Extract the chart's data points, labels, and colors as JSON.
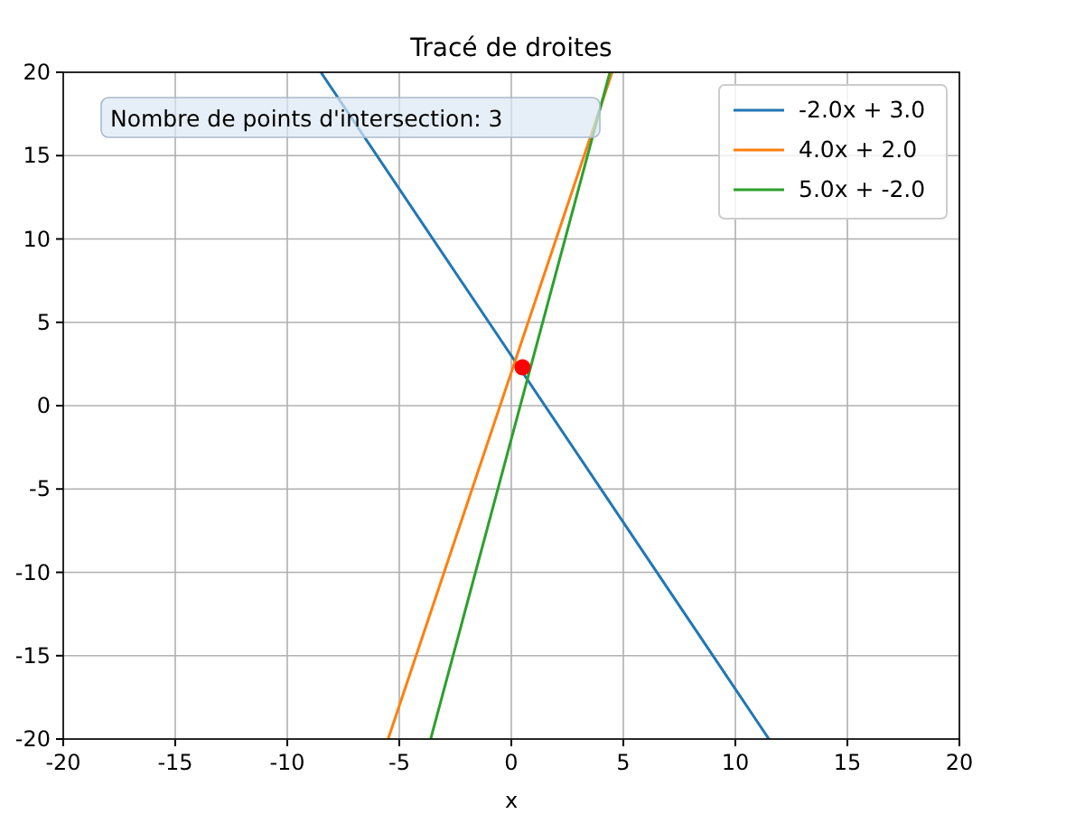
{
  "chart_data": {
    "type": "line",
    "title": "Tracé de droites",
    "xlabel": "x",
    "xlim": [
      -20,
      20
    ],
    "ylim": [
      -20,
      20
    ],
    "xticks": [
      -20,
      -15,
      -10,
      -5,
      0,
      5,
      10,
      15,
      20
    ],
    "yticks": [
      -20,
      -15,
      -10,
      -5,
      0,
      5,
      10,
      15,
      20
    ],
    "grid": true,
    "legend": "top right",
    "annotations": [
      "Nombre de points d'intersection: 3"
    ],
    "series": [
      {
        "name": "-2.0x + 3.0",
        "color": "#1f77b4",
        "x": [
          -8.5,
          11.5
        ],
        "values": [
          20,
          -20
        ]
      },
      {
        "name": "4.0x + 2.0",
        "color": "#ff7f0e",
        "x": [
          -5.5,
          4.5
        ],
        "values": [
          -20,
          20
        ]
      },
      {
        "name": "5.0x + -2.0",
        "color": "#2ca02c",
        "x": [
          -3.6,
          4.4
        ],
        "values": [
          -20,
          20
        ]
      },
      {
        "type": "scatter",
        "color": "#ff0000",
        "x": [
          0.5
        ],
        "values": [
          2.3
        ],
        "marker": "circle"
      }
    ]
  }
}
